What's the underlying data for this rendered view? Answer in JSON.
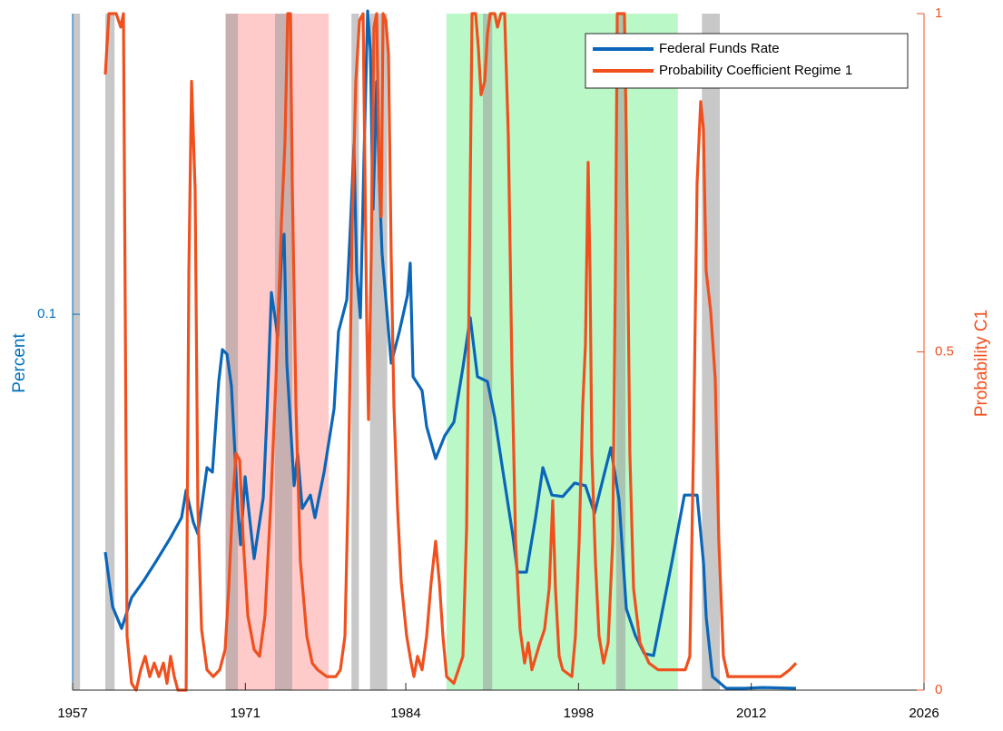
{
  "chart_data": {
    "type": "line",
    "ylabel": "Percent",
    "y2label": "Probability C1",
    "xlim": [
      1957,
      2026
    ],
    "xticks": [
      1957,
      1971,
      1984,
      1998,
      2012,
      2026
    ],
    "ylim": [
      0,
      0.18
    ],
    "yticks": [
      0.1
    ],
    "y2lim": [
      0,
      1
    ],
    "y2ticks": [
      0,
      0.5,
      1
    ],
    "y_color": "#0072bd",
    "y2_color": "#f0501e",
    "legend": "northeast",
    "bands": [
      {
        "x": [
          1969.4,
          1977.75
        ],
        "color": "#ffc4c4"
      },
      {
        "x": [
          1987.3,
          2006.05
        ],
        "color": "#b2f7c2"
      },
      {
        "x": [
          1957.0,
          1957.6
        ],
        "color": "#9a9a9a"
      },
      {
        "x": [
          1959.65,
          1960.4
        ],
        "color": "#9a9a9a"
      },
      {
        "x": [
          1969.4,
          1970.4
        ],
        "color": "#9a9a9a"
      },
      {
        "x": [
          1973.4,
          1974.8
        ],
        "color": "#9a9a9a"
      },
      {
        "x": [
          1979.6,
          1980.2
        ],
        "color": "#9a9a9a"
      },
      {
        "x": [
          1981.1,
          1982.5
        ],
        "color": "#9a9a9a"
      },
      {
        "x": [
          1990.25,
          1991.0
        ],
        "color": "#9a9a9a"
      },
      {
        "x": [
          2001.05,
          2001.8
        ],
        "color": "#9a9a9a"
      },
      {
        "x": [
          2008.0,
          2009.45
        ],
        "color": "#9a9a9a"
      }
    ],
    "series": [
      {
        "name": "Federal Funds Rate",
        "color": "#0a66b8",
        "axis": "y",
        "x": [
          1959.65,
          1960.24,
          1960.97,
          1961.78,
          1962.74,
          1963.77,
          1964.94,
          1965.83,
          1966.2,
          1966.78,
          1967.15,
          1967.89,
          1968.33,
          1968.84,
          1969.14,
          1969.51,
          1969.87,
          1970.39,
          1970.61,
          1970.98,
          1971.34,
          1971.71,
          1972.45,
          1972.74,
          1973.11,
          1973.62,
          1973.92,
          1974.14,
          1974.36,
          1974.95,
          1975.24,
          1975.61,
          1976.27,
          1976.64,
          1977.38,
          1978.19,
          1978.55,
          1979.22,
          1979.51,
          1979.8,
          1980.02,
          1980.32,
          1980.61,
          1980.91,
          1981.13,
          1981.35,
          1981.64,
          1981.86,
          1982.08,
          1982.82,
          1983.48,
          1984.14,
          1984.36,
          1984.59,
          1985.32,
          1985.69,
          1986.42,
          1987.16,
          1987.9,
          1988.63,
          1989.22,
          1989.81,
          1990.62,
          1991.21,
          1991.94,
          1992.68,
          1993.05,
          1993.78,
          1994.52,
          1995.11,
          1995.84,
          1996.72,
          1997.68,
          1998.56,
          1999.3,
          2000.03,
          2000.62,
          2001.28,
          2001.87,
          2002.61,
          2003.34,
          2004.08,
          2005.55,
          2006.58,
          2007.61,
          2008.13,
          2008.35,
          2008.86,
          2009.96,
          2011.44,
          2012.91,
          2015.63
        ],
        "values": [
          0.0367,
          0.0222,
          0.0164,
          0.0246,
          0.029,
          0.0343,
          0.0406,
          0.0459,
          0.0532,
          0.0447,
          0.0416,
          0.0592,
          0.058,
          0.0821,
          0.0906,
          0.0894,
          0.0809,
          0.0483,
          0.0387,
          0.0568,
          0.0459,
          0.035,
          0.0512,
          0.0725,
          0.1058,
          0.0942,
          0.1148,
          0.1213,
          0.087,
          0.0544,
          0.0628,
          0.0483,
          0.0519,
          0.0459,
          0.058,
          0.0749,
          0.0954,
          0.1039,
          0.1232,
          0.145,
          0.1111,
          0.0991,
          0.1413,
          0.1807,
          0.1703,
          0.128,
          0.1619,
          0.1353,
          0.116,
          0.087,
          0.0954,
          0.1051,
          0.1136,
          0.0834,
          0.0797,
          0.0701,
          0.0616,
          0.0677,
          0.0713,
          0.0858,
          0.0991,
          0.0834,
          0.0821,
          0.0725,
          0.0568,
          0.0411,
          0.0314,
          0.0314,
          0.0459,
          0.0592,
          0.0519,
          0.0515,
          0.0551,
          0.0544,
          0.0471,
          0.0568,
          0.0645,
          0.0507,
          0.0217,
          0.0145,
          0.0097,
          0.0092,
          0.0338,
          0.0519,
          0.0519,
          0.0338,
          0.0193,
          0.0036,
          0.0005,
          0.0005,
          0.0007,
          0.0005
        ]
      },
      {
        "name": "Probability Coefficient Regime 1",
        "color": "#f0501e",
        "axis": "y2",
        "x": [
          1959.65,
          1959.94,
          1960.53,
          1960.9,
          1961.12,
          1961.27,
          1961.41,
          1961.78,
          1962.15,
          1962.52,
          1962.88,
          1963.25,
          1963.62,
          1963.99,
          1964.36,
          1964.65,
          1964.94,
          1965.24,
          1965.53,
          1966.2,
          1966.42,
          1966.64,
          1966.93,
          1967.15,
          1967.45,
          1967.89,
          1968.4,
          1968.92,
          1969.36,
          1969.65,
          1969.95,
          1970.24,
          1970.54,
          1970.83,
          1971.2,
          1971.71,
          1972.15,
          1972.59,
          1973.04,
          1973.48,
          1973.92,
          1974.21,
          1974.43,
          1974.65,
          1974.8,
          1975.1,
          1975.46,
          1975.98,
          1976.42,
          1976.86,
          1977.6,
          1978.33,
          1978.7,
          1979.07,
          1979.36,
          1979.66,
          1979.95,
          1980.25,
          1980.54,
          1980.83,
          1980.98,
          1981.2,
          1981.42,
          1981.64,
          1981.86,
          1982.01,
          1982.16,
          1982.38,
          1982.6,
          1982.82,
          1983.04,
          1983.33,
          1983.63,
          1984.07,
          1984.44,
          1984.66,
          1984.95,
          1985.32,
          1985.69,
          1986.06,
          1986.42,
          1986.72,
          1987.01,
          1987.31,
          1987.9,
          1988.63,
          1988.93,
          1989.15,
          1989.37,
          1989.66,
          1989.88,
          1990.1,
          1990.4,
          1990.62,
          1990.84,
          1991.21,
          1991.43,
          1991.72,
          1992.01,
          1992.31,
          1992.6,
          1992.9,
          1993.26,
          1993.63,
          1993.93,
          1994.22,
          1994.88,
          1995.25,
          1995.62,
          1995.91,
          1996.13,
          1996.43,
          1996.72,
          1997.46,
          1997.75,
          1998.05,
          1998.34,
          1998.56,
          1998.78,
          1998.93,
          1999.08,
          1999.37,
          1999.66,
          2000.03,
          2000.4,
          2000.77,
          2000.99,
          2001.14,
          2001.72,
          2001.87,
          2002.16,
          2002.46,
          2002.98,
          2003.71,
          2004.45,
          2005.92,
          2006.65,
          2007.02,
          2007.31,
          2007.61,
          2007.9,
          2008.12,
          2008.34,
          2008.71,
          2009.08,
          2009.37,
          2009.74,
          2010.11,
          2012.17,
          2014.38,
          2015.11,
          2015.63
        ],
        "values": [
          0.91,
          1.0,
          1.0,
          0.98,
          1.0,
          0.55,
          0.08,
          0.01,
          0.0,
          0.03,
          0.05,
          0.02,
          0.04,
          0.02,
          0.04,
          0.01,
          0.05,
          0.02,
          0.0,
          0.0,
          0.62,
          0.9,
          0.74,
          0.27,
          0.09,
          0.03,
          0.02,
          0.03,
          0.06,
          0.15,
          0.27,
          0.35,
          0.34,
          0.22,
          0.11,
          0.06,
          0.05,
          0.11,
          0.27,
          0.46,
          0.69,
          0.81,
          1.0,
          1.0,
          0.75,
          0.42,
          0.19,
          0.08,
          0.04,
          0.03,
          0.02,
          0.02,
          0.03,
          0.08,
          0.32,
          0.69,
          0.9,
          0.99,
          1.0,
          0.55,
          0.4,
          0.64,
          0.98,
          1.0,
          0.75,
          0.7,
          1.0,
          0.99,
          0.94,
          0.64,
          0.42,
          0.27,
          0.16,
          0.08,
          0.04,
          0.02,
          0.05,
          0.03,
          0.08,
          0.16,
          0.22,
          0.16,
          0.08,
          0.02,
          0.01,
          0.05,
          0.24,
          0.62,
          1.0,
          1.0,
          0.95,
          0.88,
          0.9,
          0.97,
          1.0,
          1.0,
          0.98,
          1.0,
          1.0,
          0.82,
          0.48,
          0.22,
          0.09,
          0.04,
          0.07,
          0.03,
          0.07,
          0.09,
          0.15,
          0.28,
          0.15,
          0.05,
          0.03,
          0.02,
          0.08,
          0.22,
          0.42,
          0.51,
          0.78,
          0.62,
          0.35,
          0.19,
          0.08,
          0.04,
          0.07,
          0.22,
          0.62,
          1.0,
          1.0,
          0.82,
          0.35,
          0.15,
          0.07,
          0.04,
          0.03,
          0.03,
          0.03,
          0.05,
          0.35,
          0.75,
          0.87,
          0.83,
          0.62,
          0.56,
          0.46,
          0.22,
          0.05,
          0.02,
          0.02,
          0.02,
          0.03,
          0.04
        ]
      }
    ]
  }
}
